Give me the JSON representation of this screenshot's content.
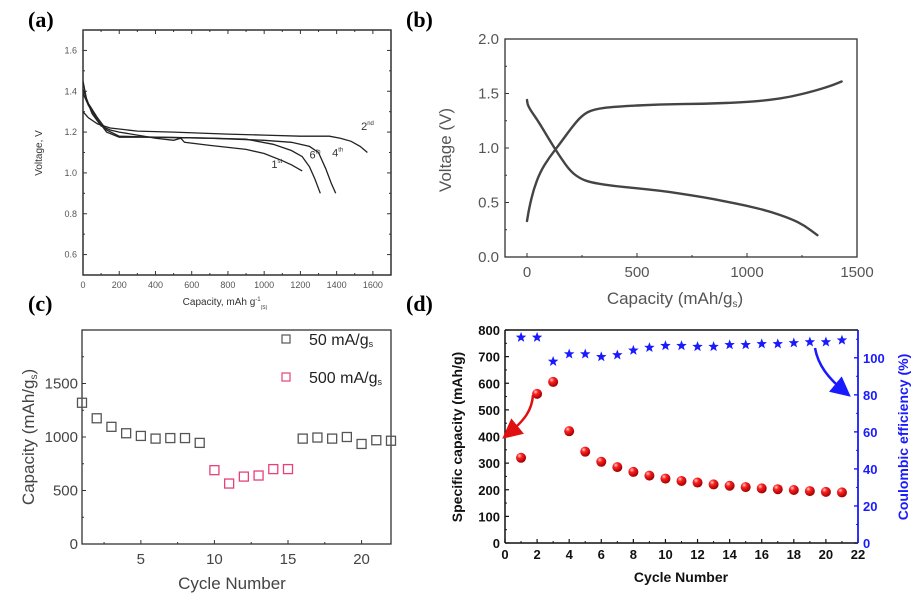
{
  "chart_data": [
    {
      "id": "a",
      "panel_label": "(a)",
      "type": "line",
      "title": "",
      "xlabel": "Capacity, mAh g",
      "xlabel_sup": "-1",
      "xlabel_sub": "(S)",
      "ylabel": "Voltage, V",
      "xlim": [
        0,
        1700
      ],
      "ylim": [
        0.5,
        1.7
      ],
      "xticks": [
        0,
        200,
        400,
        600,
        800,
        1000,
        1200,
        1400,
        1600
      ],
      "yticks": [
        0.6,
        0.8,
        1.0,
        1.2,
        1.4,
        1.6
      ],
      "ytick_labels": [
        "0.6",
        "0.8",
        "1.0",
        "1.2",
        "1.4",
        "1.6"
      ],
      "series": [
        {
          "name": "1st",
          "label": "1",
          "sup": "st",
          "points": [
            [
              0,
              1.45
            ],
            [
              20,
              1.36
            ],
            [
              50,
              1.29
            ],
            [
              100,
              1.23
            ],
            [
              150,
              1.21
            ],
            [
              200,
              1.2
            ],
            [
              300,
              1.185
            ],
            [
              400,
              1.17
            ],
            [
              500,
              1.16
            ],
            [
              540,
              1.17
            ],
            [
              560,
              1.15
            ],
            [
              700,
              1.135
            ],
            [
              900,
              1.115
            ],
            [
              1000,
              1.095
            ],
            [
              1100,
              1.06
            ],
            [
              1150,
              1.04
            ],
            [
              1210,
              1.01
            ]
          ]
        },
        {
          "name": "2nd",
          "label": "2",
          "sup": "nd",
          "points": [
            [
              0,
              1.3
            ],
            [
              30,
              1.27
            ],
            [
              80,
              1.24
            ],
            [
              150,
              1.22
            ],
            [
              300,
              1.205
            ],
            [
              500,
              1.2
            ],
            [
              800,
              1.19
            ],
            [
              1000,
              1.185
            ],
            [
              1200,
              1.18
            ],
            [
              1360,
              1.18
            ],
            [
              1420,
              1.17
            ],
            [
              1480,
              1.155
            ],
            [
              1530,
              1.13
            ],
            [
              1570,
              1.1
            ]
          ]
        },
        {
          "name": "4th",
          "label": "4",
          "sup": "th",
          "points": [
            [
              0,
              1.39
            ],
            [
              30,
              1.33
            ],
            [
              80,
              1.26
            ],
            [
              130,
              1.2
            ],
            [
              200,
              1.175
            ],
            [
              400,
              1.175
            ],
            [
              700,
              1.17
            ],
            [
              1000,
              1.16
            ],
            [
              1150,
              1.15
            ],
            [
              1250,
              1.13
            ],
            [
              1300,
              1.1
            ],
            [
              1340,
              1.02
            ],
            [
              1370,
              0.95
            ],
            [
              1395,
              0.9
            ]
          ]
        },
        {
          "name": "6th",
          "label": "6",
          "sup": "th",
          "points": [
            [
              0,
              1.41
            ],
            [
              30,
              1.34
            ],
            [
              80,
              1.27
            ],
            [
              130,
              1.21
            ],
            [
              200,
              1.18
            ],
            [
              400,
              1.175
            ],
            [
              700,
              1.17
            ],
            [
              900,
              1.165
            ],
            [
              1050,
              1.14
            ],
            [
              1150,
              1.11
            ],
            [
              1210,
              1.08
            ],
            [
              1250,
              1.03
            ],
            [
              1280,
              0.97
            ],
            [
              1310,
              0.9
            ]
          ]
        }
      ]
    },
    {
      "id": "b",
      "panel_label": "(b)",
      "type": "line",
      "title": "",
      "xlabel": "Capacity (mAh/g",
      "xlabel_sub": "s",
      "xlabel_end": ")",
      "ylabel": "Voltage (V)",
      "xlim": [
        -100,
        1500
      ],
      "ylim": [
        0.0,
        2.0
      ],
      "xticks": [
        0,
        500,
        1000,
        1500
      ],
      "yticks": [
        0.0,
        0.5,
        1.0,
        1.5,
        2.0
      ],
      "ytick_labels": [
        "0.0",
        "0.5",
        "1.0",
        "1.5",
        "2.0"
      ],
      "series": [
        {
          "name": "discharge",
          "points": [
            [
              0,
              1.44
            ],
            [
              5,
              1.38
            ],
            [
              50,
              1.25
            ],
            [
              100,
              1.08
            ],
            [
              150,
              0.92
            ],
            [
              200,
              0.78
            ],
            [
              250,
              0.71
            ],
            [
              300,
              0.68
            ],
            [
              400,
              0.65
            ],
            [
              500,
              0.63
            ],
            [
              600,
              0.61
            ],
            [
              700,
              0.58
            ],
            [
              800,
              0.55
            ],
            [
              900,
              0.51
            ],
            [
              1000,
              0.47
            ],
            [
              1100,
              0.42
            ],
            [
              1200,
              0.35
            ],
            [
              1260,
              0.29
            ],
            [
              1320,
              0.2
            ]
          ]
        },
        {
          "name": "charge",
          "points": [
            [
              0,
              0.33
            ],
            [
              10,
              0.45
            ],
            [
              30,
              0.62
            ],
            [
              60,
              0.78
            ],
            [
              100,
              0.91
            ],
            [
              150,
              1.04
            ],
            [
              200,
              1.18
            ],
            [
              250,
              1.3
            ],
            [
              300,
              1.355
            ],
            [
              400,
              1.38
            ],
            [
              600,
              1.4
            ],
            [
              800,
              1.405
            ],
            [
              1000,
              1.42
            ],
            [
              1100,
              1.44
            ],
            [
              1200,
              1.47
            ],
            [
              1300,
              1.52
            ],
            [
              1380,
              1.57
            ],
            [
              1430,
              1.61
            ]
          ]
        }
      ]
    },
    {
      "id": "c",
      "panel_label": "(c)",
      "type": "scatter",
      "title": "",
      "xlabel": "Cycle Number",
      "ylabel": "Capacity (mAh/g",
      "ylabel_sub": "s",
      "ylabel_end": ")",
      "xlim": [
        1,
        22
      ],
      "ylim": [
        0,
        2000
      ],
      "xticks": [
        5,
        10,
        15,
        20
      ],
      "yticks": [
        0,
        500,
        1000,
        1500
      ],
      "legend_position": "top-right",
      "series": [
        {
          "name": "50 mA/g",
          "name_sub": "s",
          "color": "#555555",
          "x": [
            1,
            2,
            3,
            4,
            5,
            6,
            7,
            8,
            9,
            16,
            17,
            18,
            19,
            20,
            21,
            22
          ],
          "values": [
            1320,
            1175,
            1095,
            1035,
            1010,
            985,
            990,
            990,
            945,
            985,
            995,
            985,
            1000,
            935,
            970,
            965
          ]
        },
        {
          "name": "500 mA/g",
          "name_sub": "s",
          "color": "#e8407a",
          "x": [
            10,
            11,
            12,
            13,
            14,
            15
          ],
          "values": [
            690,
            565,
            630,
            640,
            700,
            700
          ]
        }
      ]
    },
    {
      "id": "d",
      "panel_label": "(d)",
      "type": "scatter",
      "title": "",
      "xlabel": "Cycle Number",
      "ylabel": "Specific capacity (mAh/g)",
      "ylabel_right": "Coulombic efficiency (%)",
      "xlim": [
        0,
        22
      ],
      "ylim": [
        0,
        800
      ],
      "ylim_right": [
        0,
        115
      ],
      "xticks": [
        0,
        2,
        4,
        6,
        8,
        10,
        12,
        14,
        16,
        18,
        20,
        22
      ],
      "yticks": [
        0,
        100,
        200,
        300,
        400,
        500,
        600,
        700,
        800
      ],
      "yticks_right": [
        0,
        20,
        40,
        60,
        80,
        100
      ],
      "series": [
        {
          "name": "Specific capacity",
          "axis": "left",
          "color": "#e01010",
          "marker": "sphere",
          "x": [
            1,
            2,
            3,
            4,
            5,
            6,
            7,
            8,
            9,
            10,
            11,
            12,
            13,
            14,
            15,
            16,
            17,
            18,
            19,
            20,
            21
          ],
          "values": [
            320,
            560,
            605,
            420,
            343,
            305,
            285,
            267,
            253,
            242,
            233,
            227,
            220,
            215,
            210,
            205,
            202,
            199,
            195,
            192,
            190
          ]
        },
        {
          "name": "Coulombic efficiency",
          "axis": "right",
          "color": "#1a1aff",
          "marker": "star",
          "x": [
            1,
            2,
            3,
            4,
            5,
            6,
            7,
            8,
            9,
            10,
            11,
            12,
            13,
            14,
            15,
            16,
            17,
            18,
            19,
            20,
            21
          ],
          "values": [
            111,
            111,
            98,
            102,
            102,
            100.5,
            101.5,
            104,
            105.5,
            106.5,
            106.5,
            106,
            106,
            107,
            107,
            107.5,
            107.5,
            108,
            108.5,
            108.5,
            109.5
          ]
        }
      ],
      "annotations": [
        {
          "type": "arrow",
          "color": "#e01010",
          "points_to": "left-axis"
        },
        {
          "type": "arrow",
          "color": "#1a1aff",
          "points_to": "right-axis"
        }
      ]
    }
  ]
}
